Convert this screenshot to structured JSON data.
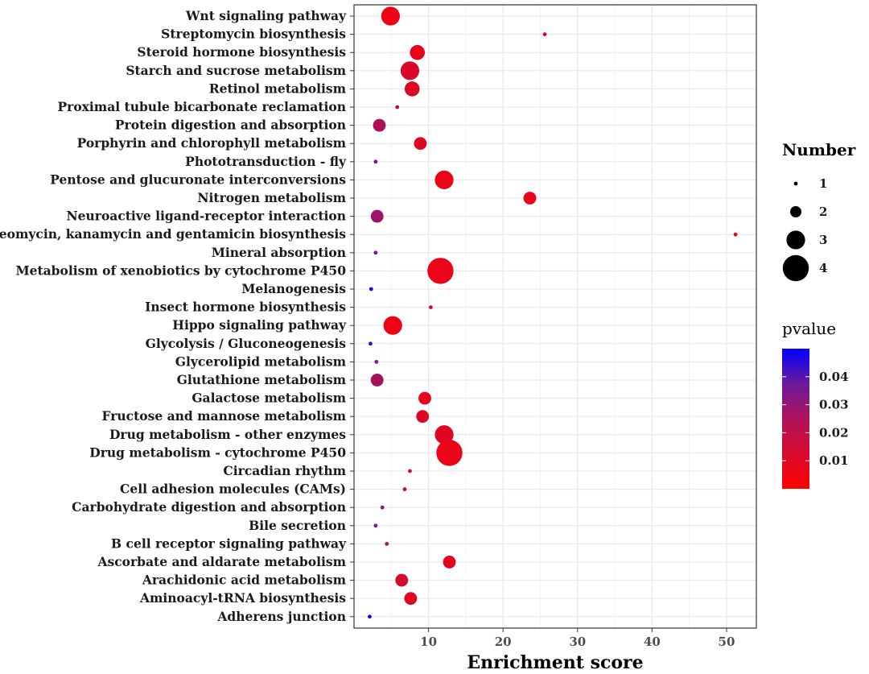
{
  "chart_data": {
    "type": "scatter",
    "subtype": "bubble",
    "xlabel": "Enrichment score",
    "ylabel": "",
    "xlim": [
      0,
      54
    ],
    "xticks": [
      10,
      20,
      30,
      40,
      50
    ],
    "grid": true,
    "size_legend": {
      "title": "Number",
      "values": [
        1,
        2,
        3,
        4
      ],
      "labels": [
        "1",
        "2",
        "3",
        "4"
      ]
    },
    "color_legend": {
      "title": "pvalue",
      "ticks": [
        0.01,
        0.02,
        0.03,
        0.04
      ],
      "tick_labels": [
        "0.01",
        "0.02",
        "0.03",
        "0.04"
      ],
      "range": [
        0.0,
        0.05
      ],
      "low_color": "#ff0000",
      "high_color": "#0000ff",
      "mid_color": "#7a1a8c"
    },
    "points": [
      {
        "term": "Wnt signaling pathway",
        "x": 4.9,
        "number": 3,
        "pvalue": 0.004
      },
      {
        "term": "Streptomycin biosynthesis",
        "x": 25.6,
        "number": 1,
        "pvalue": 0.008
      },
      {
        "term": "Steroid hormone biosynthesis",
        "x": 8.5,
        "number": 2.5,
        "pvalue": 0.006
      },
      {
        "term": "Starch and sucrose metabolism",
        "x": 7.5,
        "number": 3,
        "pvalue": 0.009
      },
      {
        "term": "Retinol metabolism",
        "x": 7.8,
        "number": 2.5,
        "pvalue": 0.008
      },
      {
        "term": "Proximal tubule bicarbonate reclamation",
        "x": 5.8,
        "number": 1,
        "pvalue": 0.018
      },
      {
        "term": "Protein digestion and absorption",
        "x": 3.4,
        "number": 2.2,
        "pvalue": 0.018
      },
      {
        "term": "Porphyrin and chlorophyll metabolism",
        "x": 8.9,
        "number": 2.2,
        "pvalue": 0.008
      },
      {
        "term": "Phototransduction - fly",
        "x": 2.9,
        "number": 1,
        "pvalue": 0.032
      },
      {
        "term": "Pentose and glucuronate interconversions",
        "x": 12.1,
        "number": 3,
        "pvalue": 0.005
      },
      {
        "term": "Nitrogen metabolism",
        "x": 23.6,
        "number": 2.2,
        "pvalue": 0.005
      },
      {
        "term": "Neuroactive ligand-receptor interaction",
        "x": 3.1,
        "number": 2.2,
        "pvalue": 0.022
      },
      {
        "term": "Neomycin, kanamycin and gentamicin biosynthesis",
        "x": 51.2,
        "number": 1,
        "pvalue": 0.007
      },
      {
        "term": "Mineral absorption",
        "x": 2.9,
        "number": 1,
        "pvalue": 0.032
      },
      {
        "term": "Metabolism of xenobiotics by cytochrome P450",
        "x": 11.6,
        "number": 4,
        "pvalue": 0.005
      },
      {
        "term": "Melanogenesis",
        "x": 2.3,
        "number": 1,
        "pvalue": 0.045
      },
      {
        "term": "Insect hormone biosynthesis",
        "x": 10.3,
        "number": 1,
        "pvalue": 0.01
      },
      {
        "term": "Hippo signaling pathway",
        "x": 5.2,
        "number": 3,
        "pvalue": 0.004
      },
      {
        "term": "Glycolysis / Gluconeogenesis",
        "x": 2.2,
        "number": 1,
        "pvalue": 0.042
      },
      {
        "term": "Glycerolipid metabolism",
        "x": 3.0,
        "number": 1,
        "pvalue": 0.03
      },
      {
        "term": "Glutathione metabolism",
        "x": 3.1,
        "number": 2.2,
        "pvalue": 0.02
      },
      {
        "term": "Galactose metabolism",
        "x": 9.5,
        "number": 2.2,
        "pvalue": 0.006
      },
      {
        "term": "Fructose and mannose metabolism",
        "x": 9.2,
        "number": 2.2,
        "pvalue": 0.008
      },
      {
        "term": "Drug metabolism - other enzymes",
        "x": 12.1,
        "number": 3,
        "pvalue": 0.007
      },
      {
        "term": "Drug metabolism - cytochrome P450",
        "x": 12.8,
        "number": 4,
        "pvalue": 0.005
      },
      {
        "term": "Circadian rhythm",
        "x": 7.5,
        "number": 1,
        "pvalue": 0.012
      },
      {
        "term": "Cell adhesion molecules (CAMs)",
        "x": 6.8,
        "number": 1,
        "pvalue": 0.015
      },
      {
        "term": "Carbohydrate digestion and absorption",
        "x": 3.8,
        "number": 1,
        "pvalue": 0.025
      },
      {
        "term": "Bile secretion",
        "x": 2.9,
        "number": 1,
        "pvalue": 0.03
      },
      {
        "term": "B cell receptor signaling pathway",
        "x": 4.4,
        "number": 1,
        "pvalue": 0.022
      },
      {
        "term": "Ascorbate and aldarate metabolism",
        "x": 12.8,
        "number": 2.2,
        "pvalue": 0.006
      },
      {
        "term": "Arachidonic acid metabolism",
        "x": 6.4,
        "number": 2.2,
        "pvalue": 0.009
      },
      {
        "term": "Aminoacyl-tRNA biosynthesis",
        "x": 7.6,
        "number": 2.2,
        "pvalue": 0.007
      },
      {
        "term": "Adherens junction",
        "x": 2.1,
        "number": 1,
        "pvalue": 0.047
      }
    ]
  }
}
